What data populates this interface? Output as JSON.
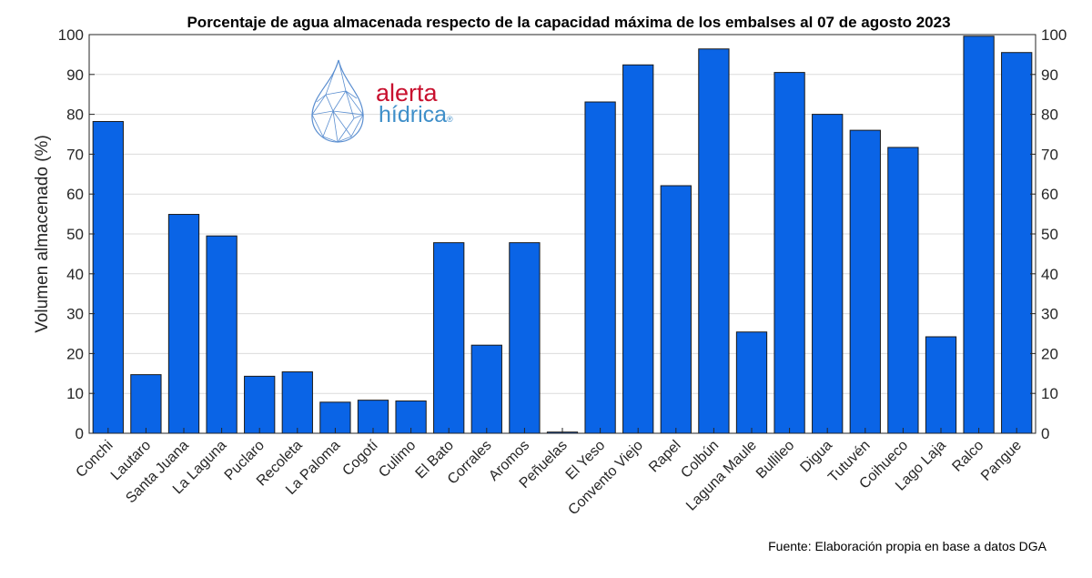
{
  "chart_data": {
    "type": "bar",
    "title": "Porcentaje de agua almacenada respecto de la capacidad máxima de los embalses al 07 de agosto 2023",
    "ylabel": "Volumen almacenado (%)",
    "xlabel": "",
    "ylim": [
      0,
      100
    ],
    "yticks": [
      0,
      10,
      20,
      30,
      40,
      50,
      60,
      70,
      80,
      90,
      100
    ],
    "right_axis_ticks": true,
    "grid": "y-major",
    "bar_color": "#0a64e6",
    "categories": [
      "Conchi",
      "Lautaro",
      "Santa Juana",
      "La Laguna",
      "Puclaro",
      "Recoleta",
      "La Paloma",
      "Cogotí",
      "Culimo",
      "El Bato",
      "Corrales",
      "Aromos",
      "Peñuelas",
      "El Yeso",
      "Convento Viejo",
      "Rapel",
      "Colbún",
      "Laguna Maule",
      "Bullileo",
      "Digua",
      "Tutuvén",
      "Coihueco",
      "Lago Laja",
      "Ralco",
      "Pangue"
    ],
    "values": [
      78.2,
      14.7,
      54.9,
      49.5,
      14.3,
      15.4,
      7.8,
      8.3,
      8.1,
      47.8,
      22.1,
      47.8,
      0.3,
      83.1,
      92.4,
      62.1,
      96.4,
      25.4,
      90.5,
      80.0,
      76.0,
      71.7,
      24.2,
      99.6,
      95.5
    ]
  },
  "logo": {
    "line1": "alerta",
    "line2": "hídrica",
    "mark": "®",
    "icon": "water-drop-icon",
    "color_red": "#c8102e",
    "color_blue": "#3f8fc9"
  },
  "source": "Fuente: Elaboración propia en base a datos DGA"
}
